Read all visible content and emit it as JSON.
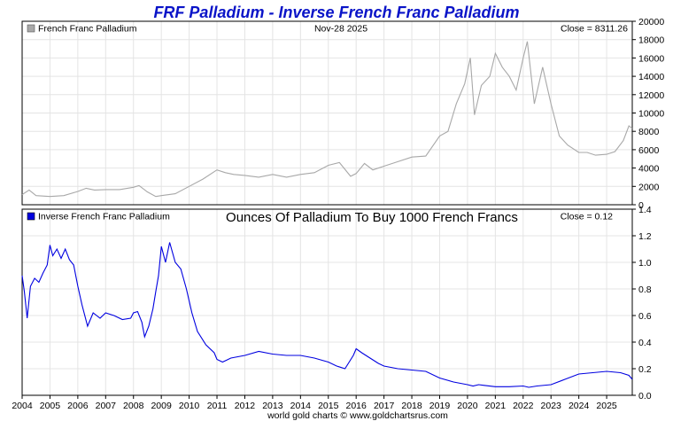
{
  "title": "FRF Palladium - Inverse French Franc Palladium",
  "footer": "world gold charts © www.goldchartsrus.com",
  "colors": {
    "title": "#0a14c8",
    "top_series": "#a8a8a8",
    "bottom_series": "#0000e0",
    "grid": "#e4e4e4",
    "frame": "#000000"
  },
  "chart_data": [
    {
      "type": "line",
      "panel": "top",
      "legend": "French Franc Palladium",
      "date_label": "Nov-28  2025",
      "close_label": "Close = 8311.26",
      "xlabel": "",
      "ylabel": "",
      "xlim": [
        2004.0,
        2025.92
      ],
      "ylim": [
        0,
        20000
      ],
      "y_ticks": [
        "0",
        "2000",
        "4000",
        "6000",
        "8000",
        "10000",
        "12000",
        "14000",
        "16000",
        "18000",
        "20000"
      ],
      "y_tick_values": [
        0,
        2000,
        4000,
        6000,
        8000,
        10000,
        12000,
        14000,
        16000,
        18000,
        20000
      ],
      "x": [
        2004.0,
        2004.25,
        2004.5,
        2004.75,
        2005.0,
        2005.5,
        2006.0,
        2006.3,
        2006.6,
        2007.0,
        2007.5,
        2008.0,
        2008.2,
        2008.5,
        2008.8,
        2009.0,
        2009.5,
        2010.0,
        2010.5,
        2011.0,
        2011.3,
        2011.6,
        2012.0,
        2012.5,
        2013.0,
        2013.5,
        2014.0,
        2014.5,
        2015.0,
        2015.4,
        2015.8,
        2016.0,
        2016.3,
        2016.6,
        2017.0,
        2017.5,
        2018.0,
        2018.5,
        2019.0,
        2019.3,
        2019.6,
        2019.9,
        2020.1,
        2020.25,
        2020.5,
        2020.8,
        2021.0,
        2021.25,
        2021.5,
        2021.75,
        2022.0,
        2022.15,
        2022.4,
        2022.7,
        2023.0,
        2023.3,
        2023.6,
        2024.0,
        2024.3,
        2024.6,
        2025.0,
        2025.3,
        2025.6,
        2025.8,
        2025.92
      ],
      "values": [
        1100,
        1600,
        1000,
        950,
        900,
        1000,
        1450,
        1800,
        1600,
        1650,
        1650,
        1900,
        2100,
        1400,
        900,
        1000,
        1200,
        2000,
        2800,
        3800,
        3500,
        3300,
        3200,
        3000,
        3300,
        3000,
        3300,
        3500,
        4300,
        4600,
        3100,
        3400,
        4500,
        3800,
        4200,
        4700,
        5200,
        5300,
        7500,
        8000,
        11000,
        13200,
        16000,
        9800,
        13000,
        14000,
        16500,
        15000,
        14000,
        12500,
        16000,
        17800,
        11000,
        15000,
        11000,
        7500,
        6500,
        5700,
        5700,
        5400,
        5500,
        5800,
        7000,
        8600,
        8311
      ]
    },
    {
      "type": "line",
      "panel": "bottom",
      "legend": "Inverse French Franc Palladium",
      "title": "Ounces Of Palladium To Buy 1000 French Francs",
      "close_label": "Close = 0.12",
      "xlabel": "",
      "ylabel": "",
      "xlim": [
        2004.0,
        2025.92
      ],
      "ylim": [
        0,
        1.4
      ],
      "y_ticks": [
        "0.0",
        "0.2",
        "0.4",
        "0.6",
        "0.8",
        "1.0",
        "1.2",
        "1.4"
      ],
      "y_tick_values": [
        0,
        0.2,
        0.4,
        0.6,
        0.8,
        1.0,
        1.2,
        1.4
      ],
      "x_ticks": [
        "2004",
        "2005",
        "2006",
        "2007",
        "2008",
        "2009",
        "2010",
        "2011",
        "2012",
        "2013",
        "2014",
        "2015",
        "2016",
        "2017",
        "2018",
        "2019",
        "2020",
        "2021",
        "2022",
        "2023",
        "2024",
        "2025"
      ],
      "x_tick_values": [
        2004,
        2005,
        2006,
        2007,
        2008,
        2009,
        2010,
        2011,
        2012,
        2013,
        2014,
        2015,
        2016,
        2017,
        2018,
        2019,
        2020,
        2021,
        2022,
        2023,
        2024,
        2025
      ],
      "x": [
        2004.0,
        2004.08,
        2004.18,
        2004.3,
        2004.45,
        2004.6,
        2004.75,
        2004.9,
        2005.0,
        2005.1,
        2005.25,
        2005.4,
        2005.55,
        2005.7,
        2005.85,
        2006.0,
        2006.15,
        2006.35,
        2006.55,
        2006.8,
        2007.0,
        2007.3,
        2007.6,
        2007.9,
        2008.0,
        2008.15,
        2008.3,
        2008.4,
        2008.55,
        2008.7,
        2008.8,
        2008.9,
        2009.0,
        2009.15,
        2009.3,
        2009.5,
        2009.7,
        2009.9,
        2010.1,
        2010.3,
        2010.6,
        2010.9,
        2011.0,
        2011.2,
        2011.5,
        2012.0,
        2012.5,
        2013.0,
        2013.5,
        2014.0,
        2014.5,
        2015.0,
        2015.3,
        2015.6,
        2015.9,
        2016.0,
        2016.2,
        2016.5,
        2016.8,
        2017.0,
        2017.5,
        2018.0,
        2018.5,
        2019.0,
        2019.5,
        2020.0,
        2020.2,
        2020.4,
        2020.6,
        2021.0,
        2021.5,
        2022.0,
        2022.2,
        2022.5,
        2023.0,
        2023.5,
        2024.0,
        2024.5,
        2025.0,
        2025.5,
        2025.8,
        2025.92
      ],
      "values": [
        0.9,
        0.78,
        0.58,
        0.82,
        0.88,
        0.85,
        0.92,
        0.98,
        1.13,
        1.05,
        1.1,
        1.03,
        1.1,
        1.02,
        0.98,
        0.82,
        0.68,
        0.52,
        0.62,
        0.58,
        0.62,
        0.6,
        0.57,
        0.58,
        0.62,
        0.63,
        0.55,
        0.44,
        0.52,
        0.65,
        0.78,
        0.9,
        1.12,
        1.0,
        1.15,
        1.0,
        0.95,
        0.8,
        0.62,
        0.48,
        0.38,
        0.32,
        0.27,
        0.25,
        0.28,
        0.3,
        0.33,
        0.31,
        0.3,
        0.3,
        0.28,
        0.25,
        0.22,
        0.2,
        0.3,
        0.35,
        0.32,
        0.28,
        0.24,
        0.22,
        0.2,
        0.19,
        0.18,
        0.13,
        0.1,
        0.08,
        0.07,
        0.08,
        0.075,
        0.065,
        0.065,
        0.07,
        0.06,
        0.07,
        0.08,
        0.12,
        0.16,
        0.17,
        0.18,
        0.17,
        0.15,
        0.12
      ]
    }
  ]
}
